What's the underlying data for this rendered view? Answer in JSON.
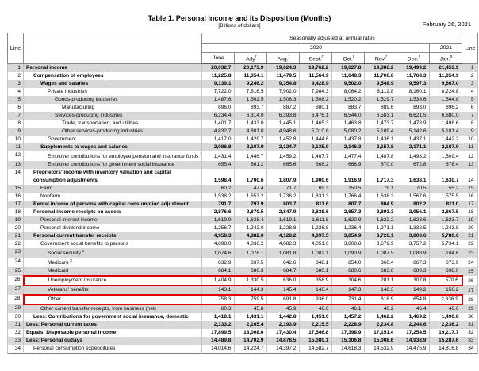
{
  "meta": {
    "date": "February 26, 2021",
    "title": "Table 1. Personal Income and Its Disposition (Months)",
    "subtitle": "[Billions of dollars]"
  },
  "colors": {
    "row_shade": "#d8d8d8",
    "highlight_box": "#e10000"
  },
  "table": {
    "line_header": "Line",
    "span_header": "Seasonally adjusted at annual rates",
    "year_2020": "2020",
    "year_2021": "2021",
    "columns": [
      {
        "label": "June",
        "sup": ""
      },
      {
        "label": "July",
        "sup": "r"
      },
      {
        "label": "Aug.",
        "sup": "r"
      },
      {
        "label": "Sept.",
        "sup": "r"
      },
      {
        "label": "Oct.",
        "sup": "r"
      },
      {
        "label": "Nov.",
        "sup": "r"
      },
      {
        "label": "Dec.",
        "sup": "r"
      },
      {
        "label": "Jan.",
        "sup": "p"
      }
    ],
    "rows": [
      {
        "line": 1,
        "label": "Personal income",
        "indent": 0,
        "bold": true,
        "values": [
          "20,032.7",
          "20,173.9",
          "19,624.3",
          "19,762.2",
          "19,627.8",
          "19,386.2",
          "19,499.2",
          "21,453.9"
        ]
      },
      {
        "line": 2,
        "label": "Compensation of employees",
        "indent": 1,
        "bold": true,
        "values": [
          "11,225.8",
          "11,354.1",
          "11,479.5",
          "11,564.9",
          "11,648.3",
          "11,706.8",
          "11,768.3",
          "11,854.9"
        ]
      },
      {
        "line": 3,
        "label": "Wages and salaries",
        "indent": 2,
        "bold": true,
        "values": [
          "9,139.1",
          "9,246.2",
          "9,354.8",
          "9,428.9",
          "9,502.0",
          "9,548.9",
          "9,597.3",
          "9,667.0"
        ]
      },
      {
        "line": 4,
        "label": "Private industries",
        "indent": 3,
        "bold": false,
        "values": [
          "7,722.0",
          "7,816.5",
          "7,902.0",
          "7,984.3",
          "8,064.2",
          "8,112.8",
          "8,160.1",
          "8,224.8"
        ]
      },
      {
        "line": 5,
        "label": "Goods-producing industries",
        "indent": 4,
        "bold": false,
        "values": [
          "1,487.6",
          "1,502.5",
          "1,508.3",
          "1,508.2",
          "1,520.2",
          "1,529.7",
          "1,538.6",
          "1,544.8"
        ]
      },
      {
        "line": 6,
        "label": "Manufacturing",
        "indent": 5,
        "bold": false,
        "values": [
          "896.0",
          "893.7",
          "887.2",
          "880.1",
          "883.7",
          "889.6",
          "893.0",
          "896.2"
        ]
      },
      {
        "line": 7,
        "label": "Services-producing industries",
        "indent": 4,
        "bold": false,
        "values": [
          "6,234.4",
          "6,314.0",
          "6,393.8",
          "6,476.1",
          "6,544.0",
          "6,583.1",
          "6,621.5",
          "6,680.0"
        ]
      },
      {
        "line": 8,
        "label": "Trade, transportation, and utilities",
        "indent": 5,
        "bold": false,
        "values": [
          "1,401.7",
          "1,433.0",
          "1,445.1",
          "1,465.3",
          "1,463.8",
          "1,473.7",
          "1,478.9",
          "1,498.6"
        ]
      },
      {
        "line": 9,
        "label": "Other services-producing industries",
        "indent": 5,
        "bold": false,
        "values": [
          "4,832.7",
          "4,881.0",
          "4,948.6",
          "5,010.8",
          "5,080.2",
          "5,109.4",
          "5,142.6",
          "5,181.4"
        ]
      },
      {
        "line": 10,
        "label": "Government",
        "indent": 3,
        "bold": false,
        "values": [
          "1,417.0",
          "1,429.7",
          "1,452.8",
          "1,444.6",
          "1,437.8",
          "1,436.1",
          "1,437.1",
          "1,442.2"
        ]
      },
      {
        "line": 11,
        "label": "Supplements to wages and salaries",
        "indent": 2,
        "bold": true,
        "values": [
          "2,086.8",
          "2,107.9",
          "2,124.7",
          "2,135.9",
          "2,146.3",
          "2,157.8",
          "2,171.1",
          "2,187.9"
        ]
      },
      {
        "line": 12,
        "label": "Employer contributions for employee pension and insurance funds",
        "footnote": "1",
        "indent": 3,
        "bold": false,
        "values": [
          "1,431.4",
          "1,446.7",
          "1,459.2",
          "1,467.7",
          "1,477.4",
          "1,487.8",
          "1,498.2",
          "1,509.4"
        ]
      },
      {
        "line": 13,
        "label": "Employer contributions for government social insurance",
        "indent": 3,
        "bold": false,
        "values": [
          "655.4",
          "661.2",
          "665.6",
          "668.2",
          "668.9",
          "670.0",
          "672.8",
          "678.4"
        ]
      },
      {
        "line": 14,
        "label": "Proprietors' income with inventory valuation and capital consumption adjustments",
        "indent": 1,
        "bold": true,
        "wrap": true,
        "values": [
          "1,598.4",
          "1,700.6",
          "1,807.9",
          "1,900.6",
          "1,916.9",
          "1,717.3",
          "1,638.1",
          "1,630.7"
        ]
      },
      {
        "line": 15,
        "label": "Farm",
        "indent": 2,
        "bold": false,
        "values": [
          "60.2",
          "47.4",
          "71.7",
          "69.3",
          "150.5",
          "79.1",
          "70.5",
          "55.2"
        ]
      },
      {
        "line": 16,
        "label": "Nonfarm",
        "indent": 2,
        "bold": false,
        "values": [
          "1,538.2",
          "1,653.2",
          "1,736.2",
          "1,831.3",
          "1,766.4",
          "1,638.3",
          "1,567.6",
          "1,575.5"
        ]
      },
      {
        "line": 17,
        "label": "Rental income of persons with capital consumption adjustment",
        "indent": 1,
        "bold": true,
        "values": [
          "791.7",
          "797.9",
          "803.7",
          "811.6",
          "807.7",
          "804.9",
          "802.2",
          "811.0"
        ]
      },
      {
        "line": 18,
        "label": "Personal income receipts on assets",
        "indent": 1,
        "bold": true,
        "values": [
          "2,876.6",
          "2,870.5",
          "2,847.9",
          "2,838.6",
          "2,857.3",
          "2,893.3",
          "2,956.1",
          "2,867.5"
        ]
      },
      {
        "line": 19,
        "label": "Personal interest income",
        "indent": 2,
        "bold": false,
        "values": [
          "1,619.9",
          "1,628.4",
          "1,619.1",
          "1,611.8",
          "1,620.9",
          "1,622.2",
          "1,623.6",
          "1,623.7"
        ]
      },
      {
        "line": 20,
        "label": "Personal dividend income",
        "indent": 2,
        "bold": false,
        "values": [
          "1,256.7",
          "1,242.0",
          "1,228.8",
          "1,226.8",
          "1,236.4",
          "1,271.1",
          "1,332.5",
          "1,243.8"
        ]
      },
      {
        "line": 21,
        "label": "Personal current transfer receipts",
        "indent": 1,
        "bold": true,
        "values": [
          "4,958.3",
          "4,882.0",
          "4,128.2",
          "4,097.5",
          "3,854.9",
          "3,726.1",
          "3,803.6",
          "5,780.6"
        ]
      },
      {
        "line": 22,
        "label": "Government social benefits to persons",
        "indent": 2,
        "bold": false,
        "values": [
          "4,898.0",
          "4,836.2",
          "4,082.3",
          "4,051.6",
          "3,808.8",
          "3,679.9",
          "3,757.2",
          "5,734.1"
        ]
      },
      {
        "line": 23,
        "label": "Social security",
        "footnote": "2",
        "indent": 3,
        "bold": false,
        "values": [
          "1,074.6",
          "1,078.1",
          "1,081.8",
          "1,082.1",
          "1,090.9",
          "1,087.5",
          "1,088.9",
          "1,104.6"
        ]
      },
      {
        "line": 24,
        "label": "Medicare",
        "footnote": "3",
        "indent": 3,
        "bold": false,
        "values": [
          "832.9",
          "837.5",
          "842.6",
          "848.1",
          "854.0",
          "860.4",
          "867.3",
          "873.9"
        ]
      },
      {
        "line": 25,
        "label": "Medicaid",
        "indent": 3,
        "bold": false,
        "values": [
          "684.1",
          "686.3",
          "684.7",
          "680.1",
          "680.6",
          "683.6",
          "689.3",
          "698.0"
        ]
      },
      {
        "line": 26,
        "label": "Unemployment insurance",
        "indent": 3,
        "bold": false,
        "boxed": true,
        "values": [
          "1,404.9",
          "1,330.5",
          "636.0",
          "358.9",
          "304.6",
          "281.1",
          "307.8",
          "570.6"
        ]
      },
      {
        "line": 27,
        "label": "Veterans' benefits",
        "indent": 3,
        "bold": false,
        "values": [
          "143.1",
          "144.3",
          "145.4",
          "146.4",
          "147.3",
          "148.3",
          "149.2",
          "150.2"
        ]
      },
      {
        "line": 28,
        "label": "Other",
        "indent": 3,
        "bold": false,
        "boxed": true,
        "values": [
          "758.3",
          "759.5",
          "691.8",
          "936.0",
          "731.4",
          "618.9",
          "654.8",
          "2,336.9"
        ]
      },
      {
        "line": 29,
        "label": "Other current transfer receipts, from business (net)",
        "indent": 2,
        "bold": false,
        "values": [
          "60.3",
          "45.8",
          "45.9",
          "46.0",
          "46.1",
          "46.2",
          "46.4",
          "46.6"
        ]
      },
      {
        "line": 30,
        "label": "Less: Contributions for government social insurance, domestic",
        "indent": 1,
        "bold": true,
        "values": [
          "1,418.1",
          "1,431.1",
          "1,442.8",
          "1,451.0",
          "1,457.2",
          "1,462.2",
          "1,469.2",
          "1,490.8"
        ]
      },
      {
        "line": 31,
        "label": "Less: Personal current taxes",
        "indent": 0,
        "bold": true,
        "values": [
          "2,133.2",
          "2,165.4",
          "2,193.9",
          "2,215.5",
          "2,228.9",
          "2,234.8",
          "2,244.6",
          "2,236.2"
        ]
      },
      {
        "line": 32,
        "label": "Equals: Disposable personal income",
        "indent": 0,
        "bold": true,
        "values": [
          "17,899.5",
          "18,008.6",
          "17,430.4",
          "17,546.8",
          "17,398.9",
          "17,151.4",
          "17,254.5",
          "19,217.7"
        ]
      },
      {
        "line": 33,
        "label": "Less: Personal outlays",
        "indent": 0,
        "bold": true,
        "values": [
          "14,489.8",
          "14,702.9",
          "14,878.5",
          "15,080.1",
          "15,106.8",
          "15,008.6",
          "14,938.9",
          "15,287.6"
        ]
      },
      {
        "line": 34,
        "label": "Personal consumption expenditures",
        "indent": 1,
        "bold": false,
        "values": [
          "14,014.6",
          "14,224.7",
          "14,397.2",
          "14,582.7",
          "14,618.3",
          "14,532.9",
          "14,475.9",
          "14,816.8"
        ]
      }
    ]
  }
}
